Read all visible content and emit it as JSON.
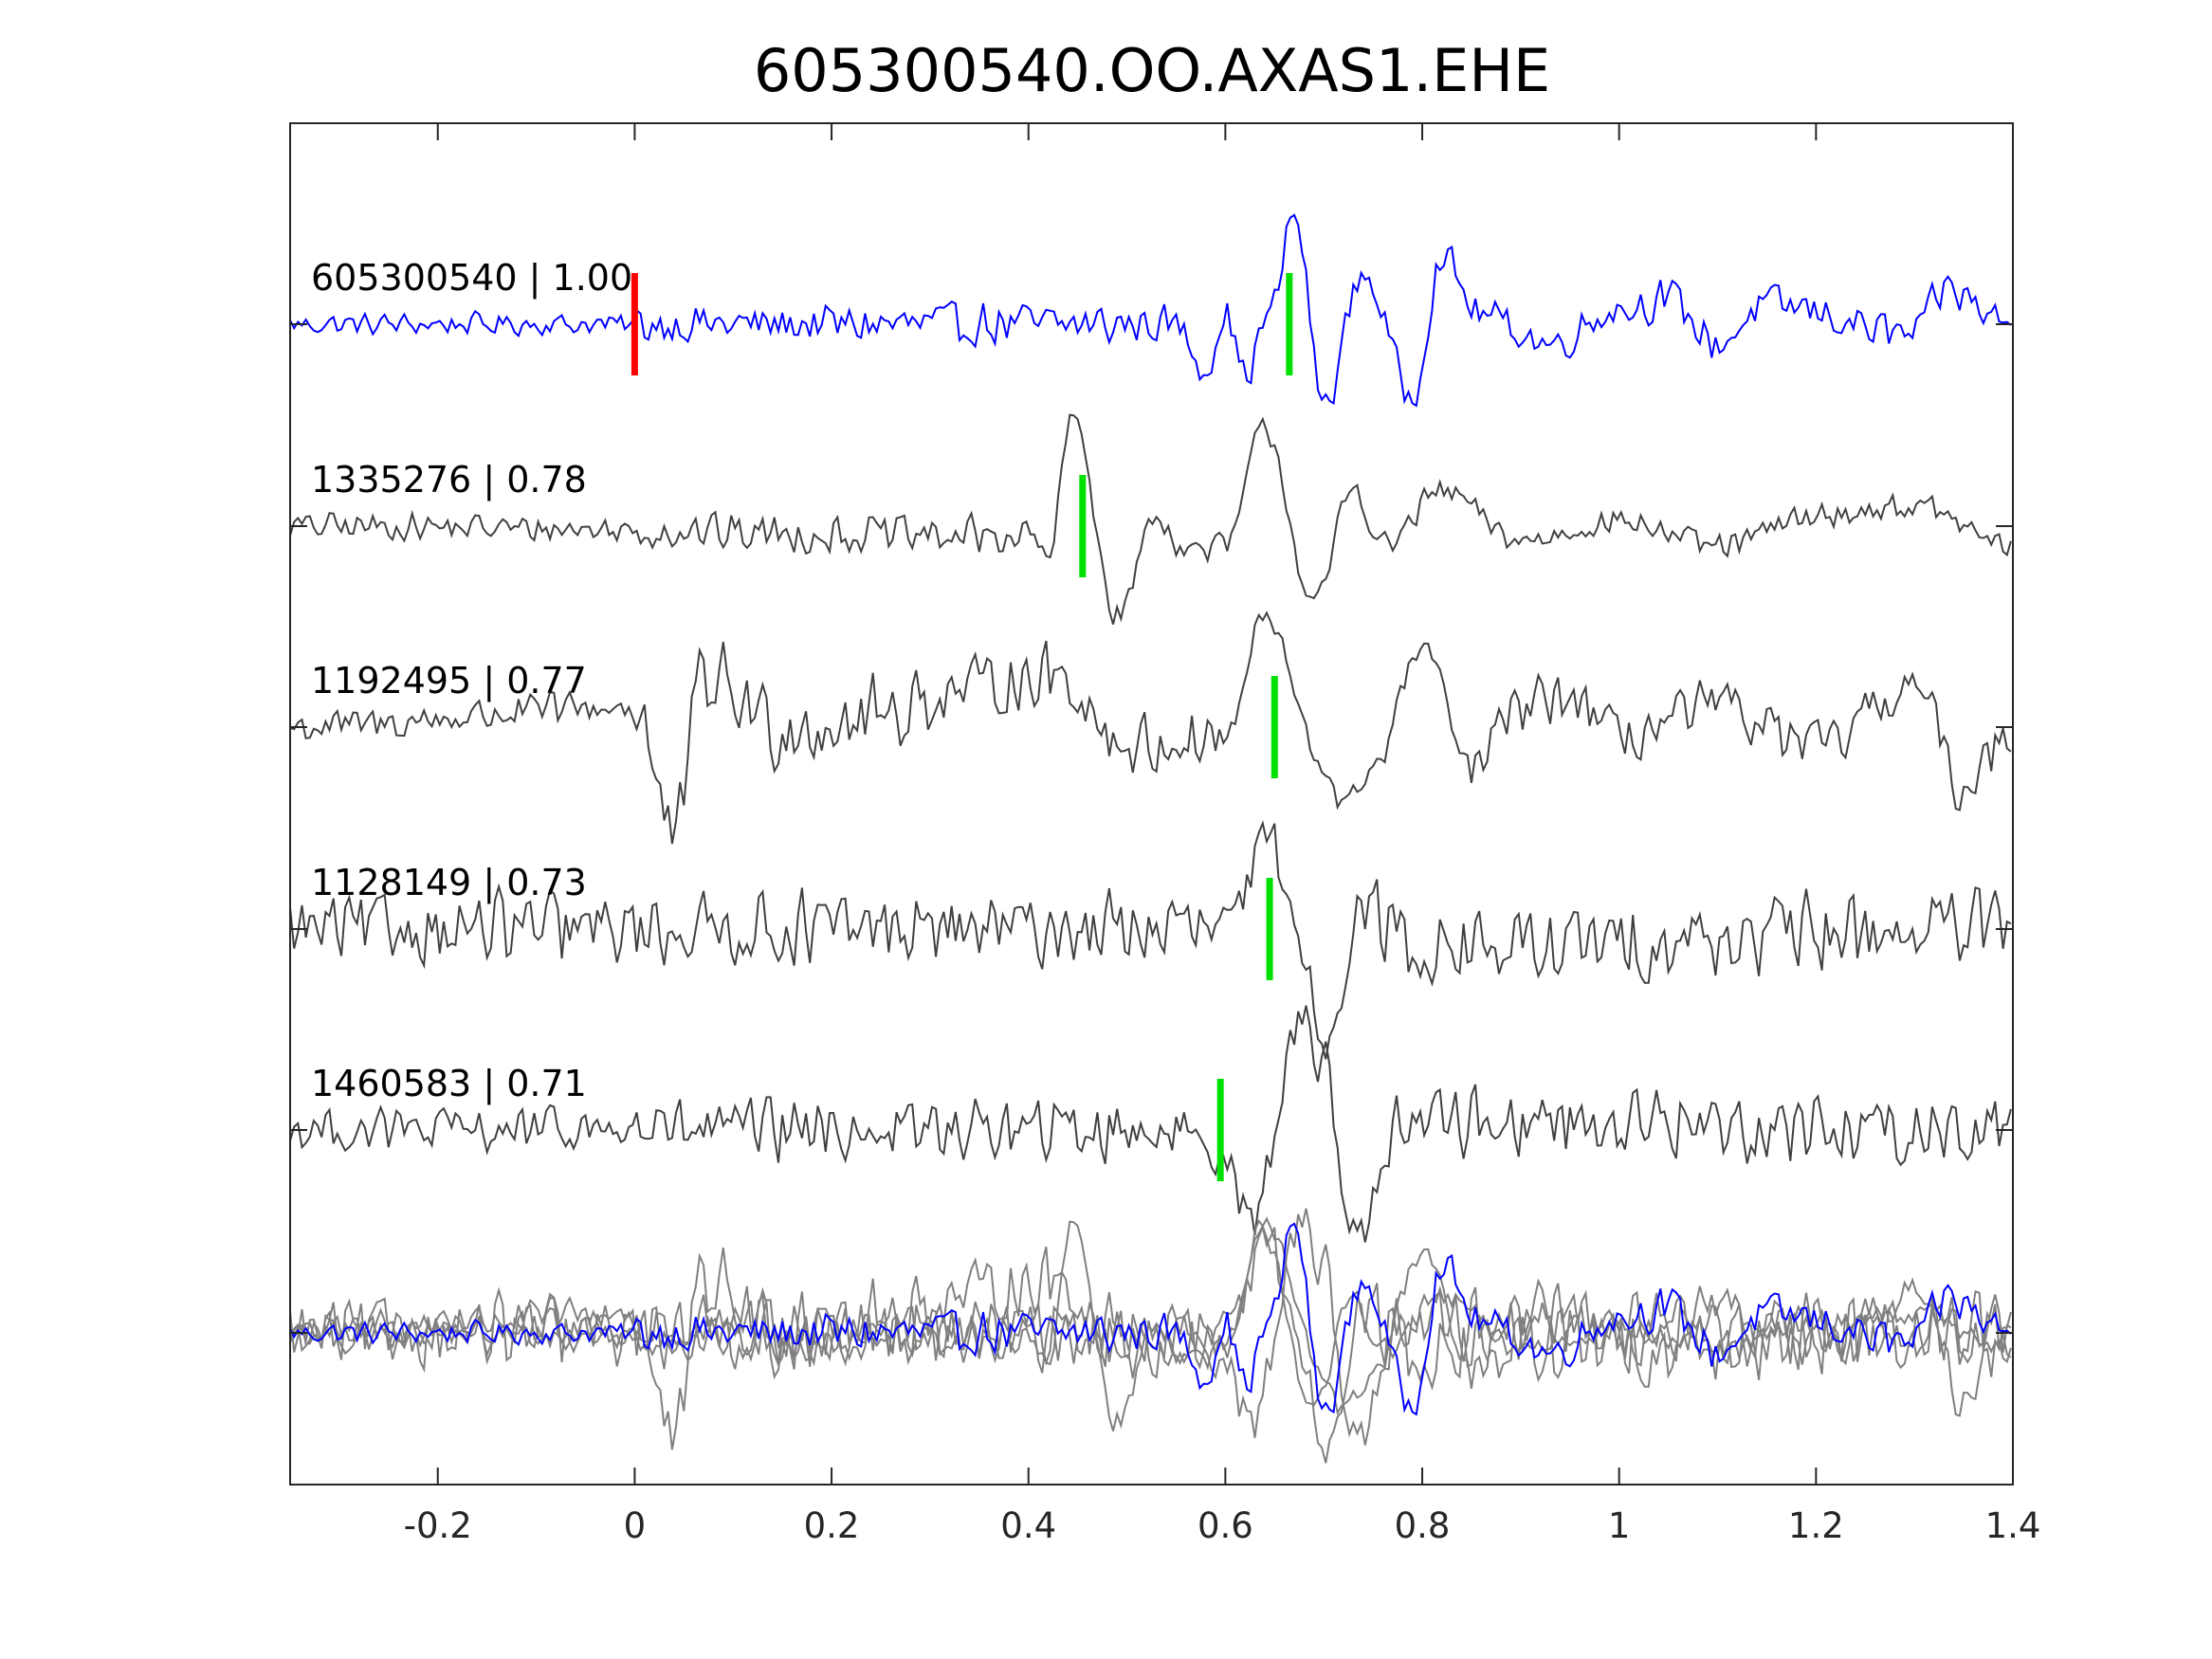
{
  "chart_data": {
    "type": "line",
    "title": "605300540.OO.AXAS1.EHE",
    "xlabel": "",
    "ylabel": "",
    "xlim": [
      -0.35,
      1.4
    ],
    "xticks": [
      -0.2,
      0,
      0.2,
      0.4,
      0.6,
      0.8,
      1,
      1.2,
      1.4
    ],
    "xtick_labels": [
      "-0.2",
      "0",
      "0.2",
      "0.4",
      "0.6",
      "0.8",
      "1",
      "1.2",
      "1.4"
    ],
    "grid": false,
    "colors": {
      "template": "#0000ff",
      "trace": "#404040",
      "overlay": "#808080",
      "origin_pick": "#ff0000",
      "match_pick": "#00e000",
      "axis": "#262626"
    },
    "traces": [
      {
        "label": "605300540 | 1.00",
        "id": "605300540",
        "cc": 1.0,
        "color": "#0000ff",
        "origin_pick": 0,
        "match_pick": 0.665,
        "features": [
          [
            -0.35,
            0
          ],
          [
            0.55,
            0
          ],
          [
            0.58,
            -0.45
          ],
          [
            0.6,
            0.1
          ],
          [
            0.62,
            -0.5
          ],
          [
            0.645,
            0.1
          ],
          [
            0.67,
            1.1
          ],
          [
            0.7,
            -0.8
          ],
          [
            0.74,
            0.5
          ],
          [
            0.79,
            -0.7
          ],
          [
            0.82,
            0.65
          ],
          [
            0.86,
            0.1
          ],
          [
            0.93,
            -0.2
          ],
          [
            1.0,
            0.15
          ],
          [
            1.05,
            0.25
          ],
          [
            1.1,
            -0.2
          ],
          [
            1.15,
            0.2
          ],
          [
            1.3,
            -0.1
          ],
          [
            1.33,
            0.35
          ],
          [
            1.4,
            0
          ]
        ],
        "noise": [
          [
            -0.35,
            0.12
          ],
          [
            0,
            0.22
          ],
          [
            0.2,
            0.25
          ],
          [
            0.5,
            0.2
          ],
          [
            1.0,
            0.22
          ]
        ]
      },
      {
        "label": "1335276 | 0.78",
        "id": "1335276",
        "cc": 0.78,
        "color": "#404040",
        "match_pick": 0.455,
        "features": [
          [
            -0.35,
            0
          ],
          [
            0.4,
            -0.1
          ],
          [
            0.42,
            -0.3
          ],
          [
            0.445,
            1.1
          ],
          [
            0.49,
            -0.9
          ],
          [
            0.53,
            0.1
          ],
          [
            0.56,
            -0.25
          ],
          [
            0.6,
            -0.2
          ],
          [
            0.64,
            1.0
          ],
          [
            0.69,
            -0.8
          ],
          [
            0.73,
            0.4
          ],
          [
            0.76,
            -0.2
          ],
          [
            0.82,
            0.35
          ],
          [
            0.9,
            -0.15
          ],
          [
            1.0,
            0.05
          ],
          [
            1.1,
            -0.2
          ],
          [
            1.2,
            0.1
          ],
          [
            1.3,
            0.2
          ],
          [
            1.4,
            -0.2
          ]
        ],
        "noise": [
          [
            -0.35,
            0.15
          ],
          [
            0,
            0.22
          ],
          [
            0.4,
            0.15
          ],
          [
            0.8,
            0.15
          ]
        ]
      },
      {
        "label": "1192495 | 0.77",
        "id": "1192495",
        "cc": 0.77,
        "color": "#404040",
        "match_pick": 0.65,
        "features": [
          [
            -0.35,
            0
          ],
          [
            0,
            0.2
          ],
          [
            0.04,
            -1.1
          ],
          [
            0.07,
            0.5
          ],
          [
            0.15,
            0
          ],
          [
            0.43,
            0.5
          ],
          [
            0.5,
            -0.2
          ],
          [
            0.6,
            -0.1
          ],
          [
            0.64,
            1.1
          ],
          [
            0.7,
            -0.4
          ],
          [
            0.72,
            -0.8
          ],
          [
            0.75,
            -0.4
          ],
          [
            0.8,
            0.8
          ],
          [
            0.85,
            -0.4
          ],
          [
            0.9,
            0.2
          ],
          [
            0.95,
            0.3
          ],
          [
            1.0,
            -0.1
          ],
          [
            1.1,
            0.2
          ],
          [
            1.2,
            -0.2
          ],
          [
            1.3,
            0.4
          ],
          [
            1.35,
            -0.6
          ],
          [
            1.4,
            0
          ]
        ],
        "noise": [
          [
            -0.35,
            0.2
          ],
          [
            0,
            0.45
          ],
          [
            0.3,
            0.35
          ],
          [
            0.6,
            0.15
          ],
          [
            0.85,
            0.3
          ]
        ]
      },
      {
        "label": "1128149 | 0.73",
        "id": "1128149",
        "cc": 0.73,
        "color": "#404040",
        "match_pick": 0.645,
        "features": [
          [
            -0.35,
            0
          ],
          [
            0.6,
            0
          ],
          [
            0.645,
            0.9
          ],
          [
            0.67,
            0.1
          ],
          [
            0.7,
            -1.1
          ],
          [
            0.74,
            0.2
          ],
          [
            0.8,
            -0.2
          ],
          [
            1.4,
            0
          ]
        ],
        "noise": [
          [
            -0.35,
            0.4
          ],
          [
            0.6,
            0.3
          ],
          [
            0.75,
            0.45
          ]
        ]
      },
      {
        "label": "1460583 | 0.71",
        "id": "1460583",
        "cc": 0.71,
        "color": "#404040",
        "match_pick": 0.595,
        "features": [
          [
            -0.35,
            0
          ],
          [
            0.55,
            0
          ],
          [
            0.6,
            -0.2
          ],
          [
            0.625,
            -0.9
          ],
          [
            0.68,
            1.1
          ],
          [
            0.7,
            0.7
          ],
          [
            0.73,
            -1.1
          ],
          [
            0.78,
            0.1
          ],
          [
            1.4,
            0
          ]
        ],
        "noise": [
          [
            -0.35,
            0.25
          ],
          [
            0,
            0.35
          ],
          [
            0.5,
            0.3
          ],
          [
            0.8,
            0.4
          ]
        ]
      }
    ]
  }
}
